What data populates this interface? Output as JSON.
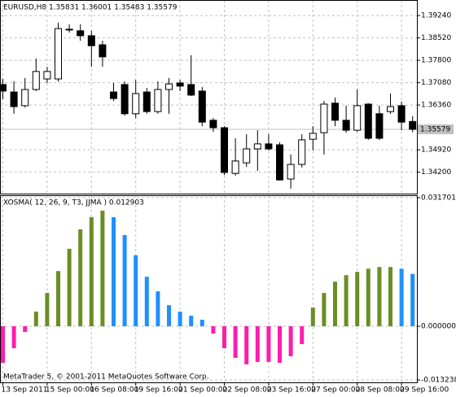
{
  "chart_data": [
    {
      "type": "candlestick",
      "title": "EURUSD,H8  1.35831 1.36001 1.35483 1.35579",
      "open": [
        1.3702,
        1.3678,
        1.3634,
        1.3686,
        1.372,
        1.372,
        1.388,
        1.3875,
        1.3859,
        1.383,
        1.3678,
        1.3702,
        1.3608,
        1.3678,
        1.3615,
        1.3686,
        1.3707,
        1.3702,
        1.3681,
        1.3587,
        1.3563,
        1.3416,
        1.345,
        1.3495,
        1.3511,
        1.3508,
        1.3398,
        1.3445,
        1.3526,
        1.3547,
        1.3642,
        1.3587,
        1.3555,
        1.3639,
        1.3608,
        1.3615,
        1.3634,
        1.35831
      ],
      "high": [
        1.372,
        1.3712,
        1.3723,
        1.3786,
        1.3759,
        1.3901,
        1.3896,
        1.3896,
        1.3875,
        1.3843,
        1.3707,
        1.3712,
        1.3717,
        1.3691,
        1.3712,
        1.3723,
        1.3717,
        1.3796,
        1.3694,
        1.3594,
        1.3568,
        1.3529,
        1.3542,
        1.3555,
        1.3542,
        1.3516,
        1.3477,
        1.3542,
        1.3568,
        1.3649,
        1.366,
        1.3634,
        1.3686,
        1.3642,
        1.3634,
        1.3673,
        1.3647,
        1.36001
      ],
      "low": [
        1.3655,
        1.3608,
        1.3628,
        1.3681,
        1.3707,
        1.3712,
        1.3869,
        1.3843,
        1.3759,
        1.3759,
        1.3649,
        1.3602,
        1.3594,
        1.3608,
        1.3608,
        1.3608,
        1.3681,
        1.3665,
        1.3568,
        1.355,
        1.3411,
        1.3409,
        1.3437,
        1.3424,
        1.349,
        1.3393,
        1.3367,
        1.3435,
        1.349,
        1.3477,
        1.3568,
        1.3547,
        1.355,
        1.3524,
        1.3524,
        1.3608,
        1.3555,
        1.35483
      ],
      "close": [
        1.3681,
        1.3631,
        1.3686,
        1.3744,
        1.3744,
        1.3882,
        1.3879,
        1.3859,
        1.3827,
        1.3791,
        1.3657,
        1.3608,
        1.3673,
        1.3615,
        1.3686,
        1.3704,
        1.3697,
        1.3668,
        1.3581,
        1.3563,
        1.3419,
        1.3456,
        1.3495,
        1.3511,
        1.3495,
        1.3395,
        1.3445,
        1.3524,
        1.3545,
        1.3639,
        1.3587,
        1.3555,
        1.3634,
        1.3529,
        1.3529,
        1.3631,
        1.3581,
        1.35579
      ],
      "up_color": "#ffffff",
      "down_color": "#000000",
      "ylim": [
        1.3351,
        1.3974
      ],
      "yticks": [
        {
          "value": 1.3924,
          "label": "1.39240"
        },
        {
          "value": 1.3852,
          "label": "1.38520"
        },
        {
          "value": 1.378,
          "label": "1.37800"
        },
        {
          "value": 1.3708,
          "label": "1.37080"
        },
        {
          "value": 1.3636,
          "label": "1.36360"
        },
        {
          "value": 1.3492,
          "label": "1.34920"
        },
        {
          "value": 1.342,
          "label": "1.34200"
        }
      ],
      "current_price": {
        "value": 1.35579,
        "label": "1.35579"
      },
      "grid": true
    },
    {
      "type": "bar",
      "title": "XOSMA( 12, 26, 9, T3, JJMA ) 0.012903",
      "annotation": "MetaTrader 5, © 2001-2011 MetaQuotes Software Corp.",
      "categories": [
        "13 Sep 2011",
        null,
        null,
        null,
        "15 Sep 00:00",
        null,
        null,
        null,
        "16 Sep 08:00",
        null,
        null,
        null,
        "19 Sep 16:00",
        null,
        null,
        null,
        "21 Sep 00:00",
        null,
        null,
        null,
        "22 Sep 08:00",
        null,
        null,
        null,
        "23 Sep 16:00",
        null,
        null,
        null,
        "27 Sep 00:00",
        null,
        null,
        null,
        "28 Sep 08:00",
        null,
        null,
        null,
        "29 Sep 16:00",
        null
      ],
      "values": [
        -0.009,
        -0.0054,
        -0.0014,
        0.0036,
        0.0082,
        0.0136,
        0.0191,
        0.0239,
        0.0269,
        0.0285,
        0.0269,
        0.0225,
        0.0175,
        0.0122,
        0.0086,
        0.0052,
        0.0036,
        0.0026,
        0.0016,
        -0.0018,
        -0.0054,
        -0.0078,
        -0.0094,
        -0.0088,
        -0.0088,
        -0.009,
        -0.0074,
        -0.0044,
        0.0046,
        0.0082,
        0.011,
        0.0126,
        0.0134,
        0.0142,
        0.0146,
        0.0146,
        0.0142,
        0.012903
      ],
      "colors": [
        "#ff1cae",
        "#ff1cae",
        "#ff1cae",
        "#6b8e23",
        "#6b8e23",
        "#6b8e23",
        "#6b8e23",
        "#6b8e23",
        "#6b8e23",
        "#6b8e23",
        "#1e90ff",
        "#1e90ff",
        "#1e90ff",
        "#1e90ff",
        "#1e90ff",
        "#1e90ff",
        "#1e90ff",
        "#1e90ff",
        "#1e90ff",
        "#ff1cae",
        "#ff1cae",
        "#ff1cae",
        "#ff1cae",
        "#ff1cae",
        "#ff1cae",
        "#ff1cae",
        "#ff1cae",
        "#ff1cae",
        "#6b8e23",
        "#6b8e23",
        "#6b8e23",
        "#6b8e23",
        "#6b8e23",
        "#6b8e23",
        "#6b8e23",
        "#6b8e23",
        "#1e90ff",
        "#1e90ff"
      ],
      "ylim": [
        -0.013238,
        0.031701
      ],
      "yticks": [
        {
          "value": 0.031701,
          "label": "0.031701"
        },
        {
          "value": 0,
          "label": "0.000000"
        },
        {
          "value": -0.013238,
          "label": "-0.013238"
        }
      ],
      "grid": true
    }
  ]
}
